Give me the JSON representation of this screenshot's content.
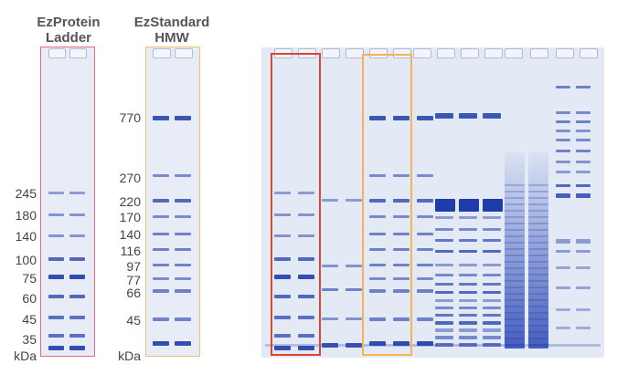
{
  "gel1": {
    "title_line1": "EzProtein",
    "title_line2": "Ladder",
    "frame_color": "#e36a7a",
    "markers": [
      "245",
      "180",
      "140",
      "100",
      "75",
      "60",
      "45",
      "35"
    ],
    "unit": "kDa"
  },
  "gel2": {
    "title_line1": "EzStandard",
    "title_line2": "HMW",
    "frame_color": "#f0c078",
    "markers": [
      "770",
      "270",
      "220",
      "170",
      "140",
      "116",
      "97",
      "77",
      "66",
      "45"
    ],
    "unit": "kDa"
  },
  "gel3": {
    "red_box_color": "#d9472f",
    "orange_box_color": "#f2b552"
  },
  "colors": {
    "gel_background": "#e6ebf6",
    "band": "#2f55b8",
    "band_strong": "#1f3fa8"
  }
}
